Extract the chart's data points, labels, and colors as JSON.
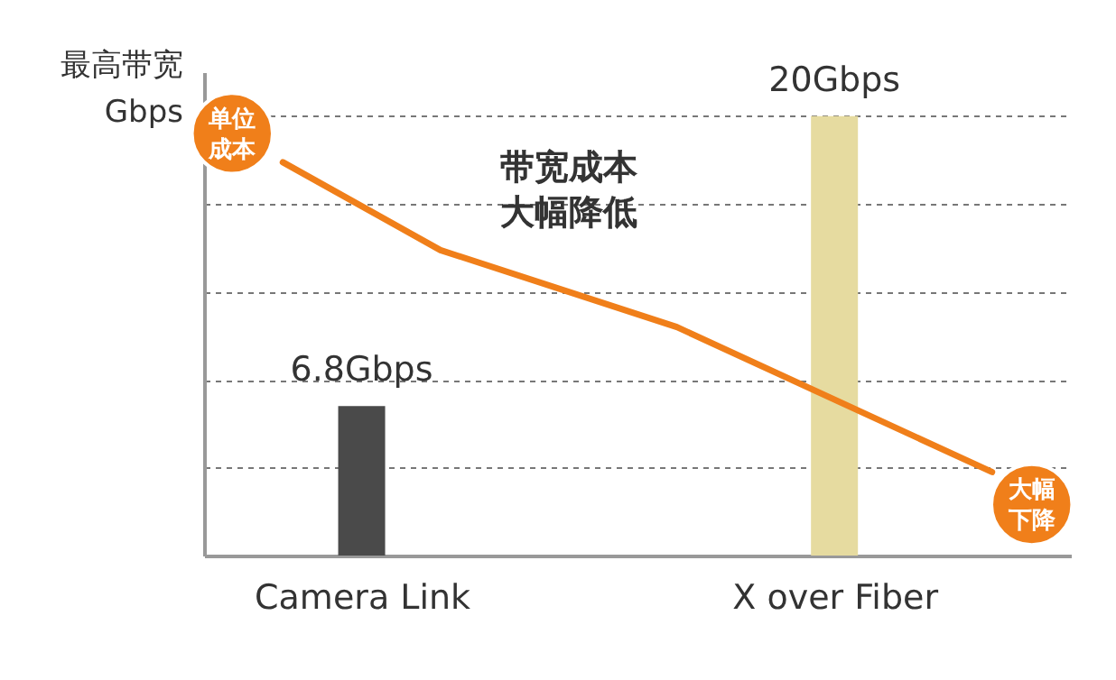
{
  "chart_data": {
    "type": "bar",
    "ylabel": "最高带宽 Gbps",
    "categories": [
      null,
      "Camera Link",
      null,
      null,
      null,
      null,
      null,
      "X over Fiber",
      null,
      null
    ],
    "ylim": [
      0,
      22
    ],
    "yticks": [
      {
        "value": 0,
        "label": null
      },
      {
        "value": 4,
        "label": null
      },
      {
        "value": 8,
        "label": null
      },
      {
        "value": 12,
        "label": null
      },
      {
        "value": 16,
        "label": null
      },
      {
        "value": 20,
        "label": null
      }
    ],
    "tick_labels": "x",
    "grid": "y",
    "legend": false,
    "series": [
      {
        "values": [
          null,
          6.8,
          null,
          null,
          null,
          null,
          null,
          20,
          null,
          null
        ],
        "colors": [
          null,
          "#4a4a4a",
          null,
          null,
          null,
          null,
          null,
          "#e6dba0",
          null,
          null
        ],
        "value_labels": [
          null,
          "6.8Gbps",
          null,
          null,
          null,
          null,
          null,
          "20Gbps",
          null,
          null
        ]
      },
      {
        "type": "line",
        "color": "#f07f1a",
        "line_style": "solid",
        "marker": "none",
        "values": [
          17.9,
          null,
          13.9,
          null,
          null,
          10.4,
          null,
          null,
          null,
          3.8
        ]
      }
    ],
    "annotations": [
      "单位成本",
      "带宽成本大幅降低",
      "大幅下降"
    ]
  }
}
